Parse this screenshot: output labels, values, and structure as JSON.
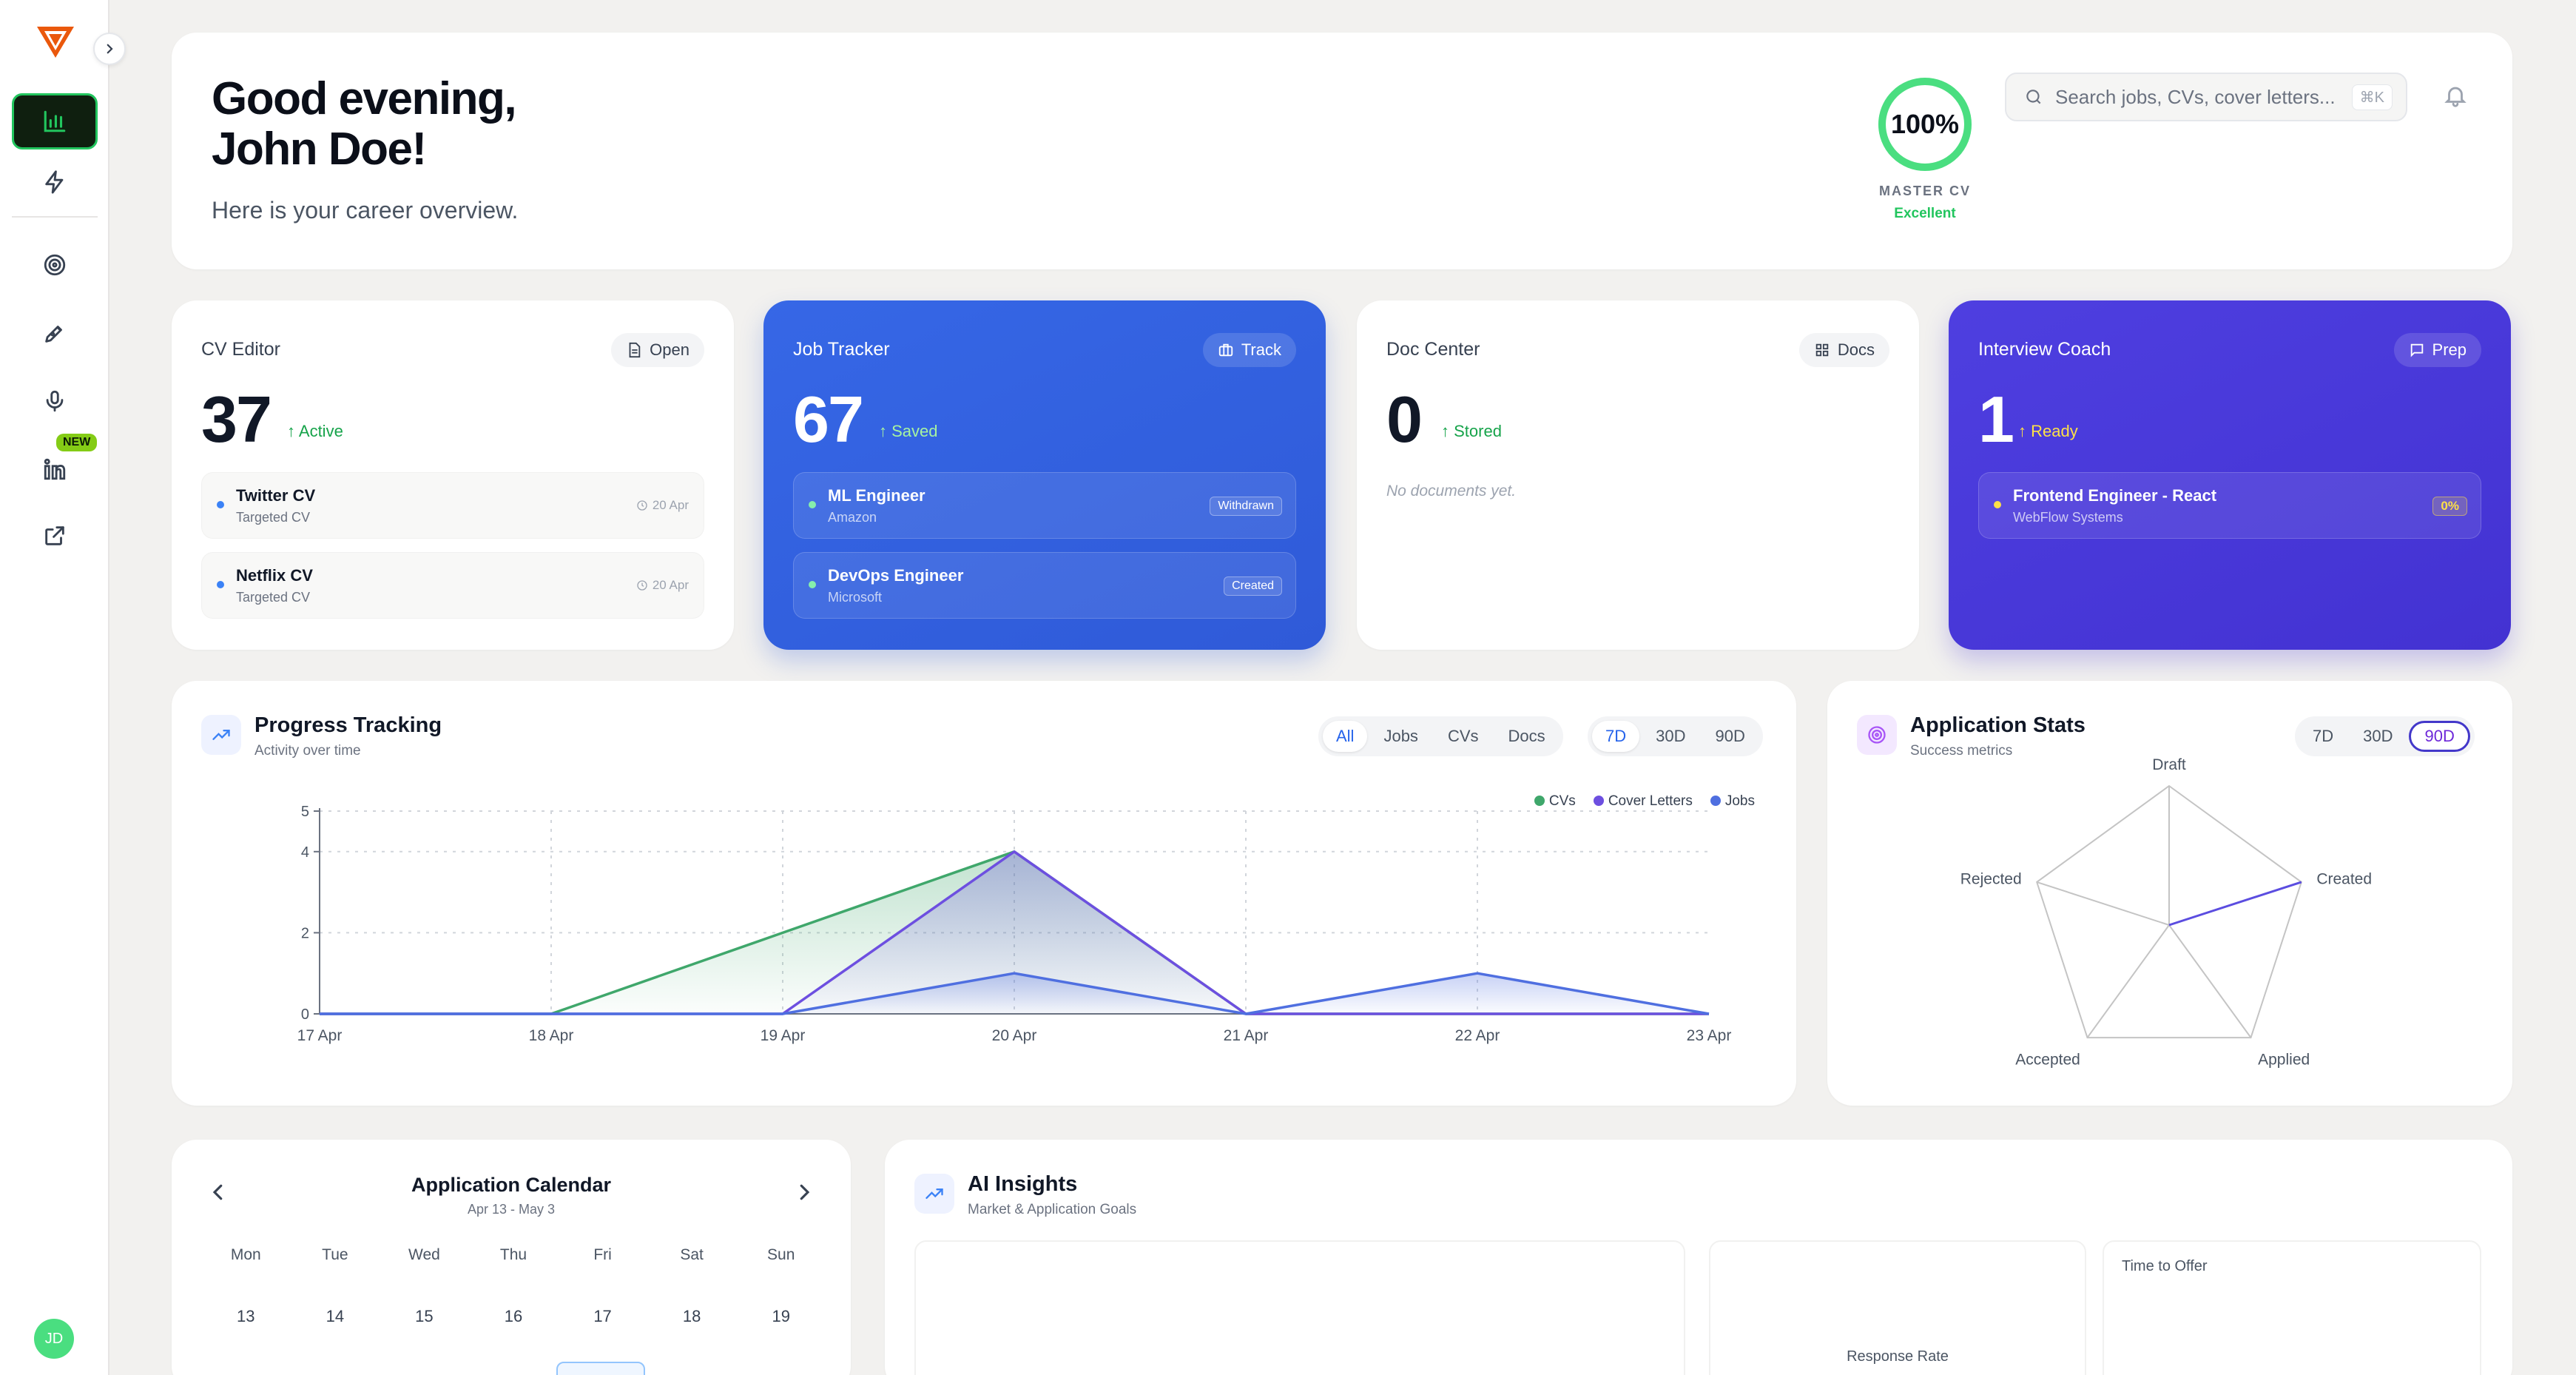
{
  "hero": {
    "greeting_line1": "Good evening,",
    "greeting_line2": "John Doe!",
    "subtitle": "Here is your career overview.",
    "master_cv_percent": "100%",
    "master_cv_progress": 1.0,
    "master_cv_label": "MASTER CV",
    "master_cv_status": "Excellent",
    "search_placeholder": "Search jobs, CVs, cover letters...",
    "search_shortcut": "⌘K"
  },
  "sidebar": {
    "new_badge": "NEW",
    "avatar_initials": "JD",
    "items": [
      "analytics-icon",
      "lightning-icon",
      "target-icon",
      "pen-icon",
      "microphone-icon",
      "linkedin-icon",
      "external-link-icon"
    ]
  },
  "cards": {
    "cv_editor": {
      "title": "CV Editor",
      "button": "Open",
      "count": "37",
      "tag": "↑ Active",
      "items": [
        {
          "title": "Twitter CV",
          "sub": "Targeted CV",
          "date": "20 Apr"
        },
        {
          "title": "Netflix CV",
          "sub": "Targeted CV",
          "date": "20 Apr"
        }
      ]
    },
    "job_tracker": {
      "title": "Job Tracker",
      "button": "Track",
      "count": "67",
      "tag": "↑ Saved",
      "items": [
        {
          "title": "ML Engineer",
          "sub": "Amazon",
          "badge": "Withdrawn"
        },
        {
          "title": "DevOps Engineer",
          "sub": "Microsoft",
          "badge": "Created"
        }
      ]
    },
    "doc_center": {
      "title": "Doc Center",
      "button": "Docs",
      "count": "0",
      "tag": "↑ Stored",
      "empty": "No documents yet."
    },
    "interview_coach": {
      "title": "Interview Coach",
      "button": "Prep",
      "count": "1",
      "tag": "↑ Ready",
      "items": [
        {
          "title": "Frontend Engineer - React",
          "sub": "WebFlow Systems",
          "badge": "0%"
        }
      ]
    }
  },
  "progress": {
    "title": "Progress Tracking",
    "subtitle": "Activity over time",
    "filters": [
      "All",
      "Jobs",
      "CVs",
      "Docs"
    ],
    "active_filter": "All",
    "ranges": [
      "7D",
      "30D",
      "90D"
    ],
    "active_range": "7D"
  },
  "stats": {
    "title": "Application Stats",
    "subtitle": "Success metrics",
    "ranges": [
      "7D",
      "30D",
      "90D"
    ],
    "active_range": "90D"
  },
  "calendar": {
    "title": "Application Calendar",
    "range": "Apr 13 - May 3",
    "days_of_week": [
      "Mon",
      "Tue",
      "Wed",
      "Thu",
      "Fri",
      "Sat",
      "Sun"
    ],
    "week1": [
      "13",
      "14",
      "15",
      "16",
      "17",
      "18",
      "19"
    ]
  },
  "insights": {
    "title": "AI Insights",
    "subtitle": "Market & Application Goals",
    "response_rate_label": "Response Rate",
    "time_to_offer_label": "Time to Offer"
  },
  "chart_data": [
    {
      "type": "area",
      "title": "",
      "x": [
        "17 Apr",
        "18 Apr",
        "19 Apr",
        "20 Apr",
        "21 Apr",
        "22 Apr",
        "23 Apr"
      ],
      "ylim": [
        0,
        5
      ],
      "yticks": [
        "0",
        "2",
        "4",
        "5"
      ],
      "legend": "top-right",
      "grid": true,
      "series": [
        {
          "name": "CVs",
          "color": "#3fa76b",
          "values": [
            0,
            0,
            2,
            4,
            0,
            0,
            0
          ]
        },
        {
          "name": "Cover Letters",
          "color": "#6d4fe0",
          "values": [
            0,
            0,
            0,
            4,
            0,
            0,
            0
          ]
        },
        {
          "name": "Jobs",
          "color": "#4f6fe0",
          "values": [
            0,
            0,
            0,
            1,
            0,
            1,
            0
          ]
        }
      ]
    },
    {
      "type": "radar",
      "axes": [
        "Draft",
        "Created",
        "Applied",
        "Accepted",
        "Rejected"
      ],
      "max": 1,
      "series": [
        {
          "color": "#5b4de0",
          "values": [
            0,
            1,
            0,
            0,
            0
          ]
        }
      ]
    }
  ]
}
